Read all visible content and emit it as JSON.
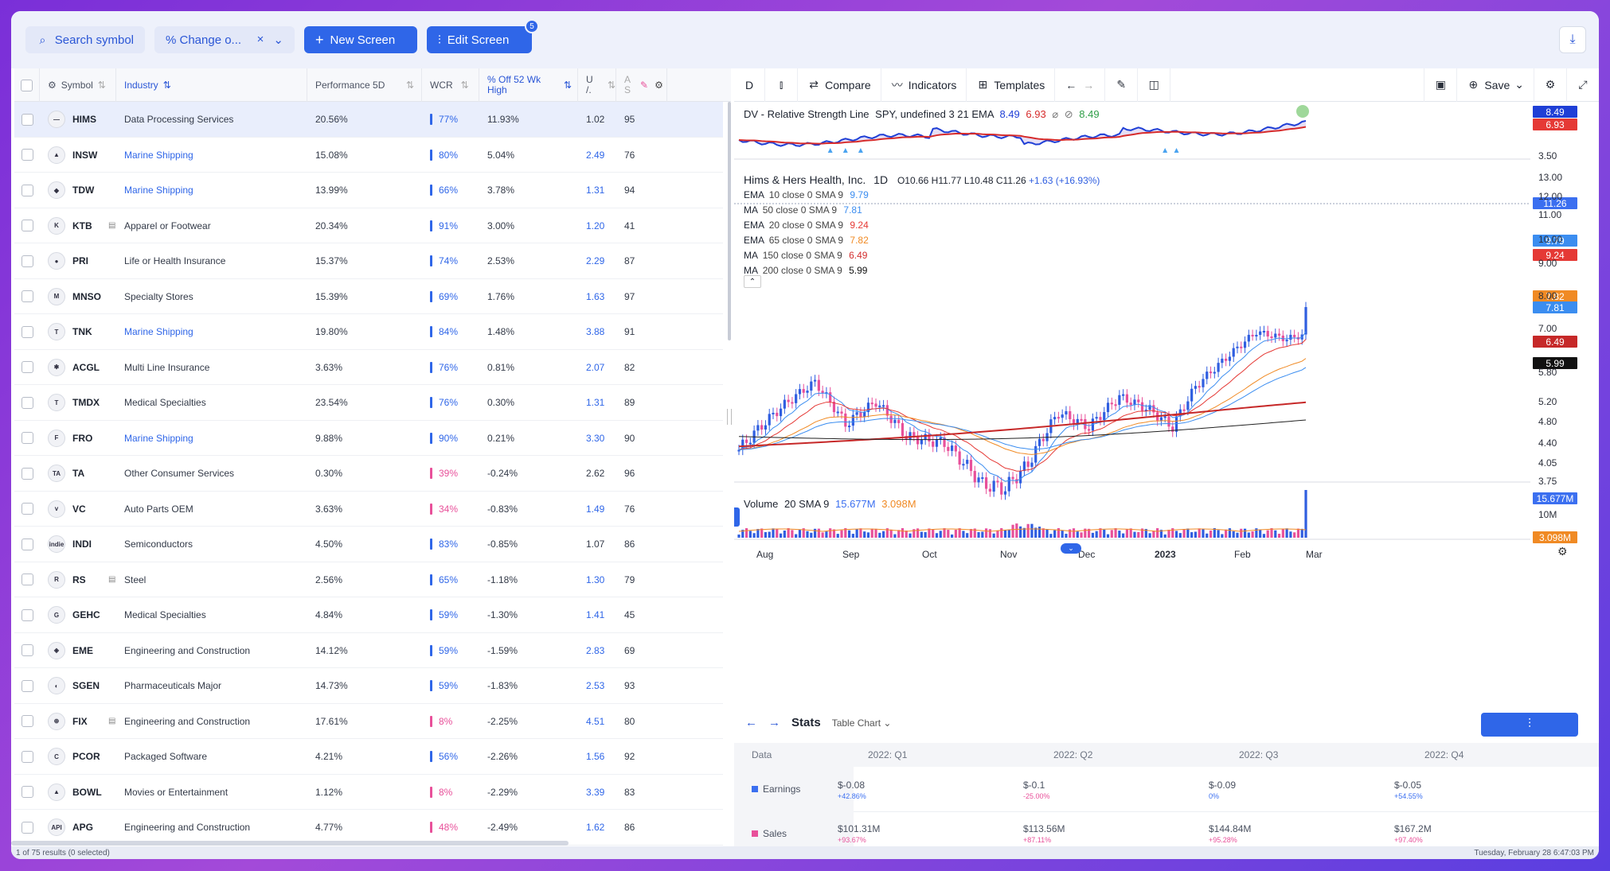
{
  "toolbar": {
    "search_label": "Search symbol",
    "filter_label": "% Change o...",
    "new_screen": "New Screen",
    "edit_screen": "Edit Screen",
    "edit_badge": "5"
  },
  "table": {
    "headers": {
      "symbol": "Symbol",
      "industry": "Industry",
      "perf": "Performance 5D",
      "wcr": "WCR",
      "off52": "% Off 52 Wk High",
      "u": "U /.",
      "a": "A S"
    },
    "rows": [
      {
        "symbol": "HIMS",
        "industry": "Data Processing Services",
        "perf": "20.56%",
        "wcr": "77%",
        "off": "11.93%",
        "u": "1.02",
        "a": "95",
        "link": false,
        "wpos": true,
        "ublue": false,
        "logo": "—",
        "extra": false
      },
      {
        "symbol": "INSW",
        "industry": "Marine Shipping",
        "perf": "15.08%",
        "wcr": "80%",
        "off": "5.04%",
        "u": "2.49",
        "a": "76",
        "link": true,
        "wpos": true,
        "ublue": true,
        "logo": "▲",
        "extra": false
      },
      {
        "symbol": "TDW",
        "industry": "Marine Shipping",
        "perf": "13.99%",
        "wcr": "66%",
        "off": "3.78%",
        "u": "1.31",
        "a": "94",
        "link": true,
        "wpos": true,
        "ublue": true,
        "logo": "◆",
        "extra": false
      },
      {
        "symbol": "KTB",
        "industry": "Apparel or Footwear",
        "perf": "20.34%",
        "wcr": "91%",
        "off": "3.00%",
        "u": "1.20",
        "a": "41",
        "link": false,
        "wpos": true,
        "ublue": true,
        "logo": "K",
        "extra": true
      },
      {
        "symbol": "PRI",
        "industry": "Life or Health Insurance",
        "perf": "15.37%",
        "wcr": "74%",
        "off": "2.53%",
        "u": "2.29",
        "a": "87",
        "link": false,
        "wpos": true,
        "ublue": true,
        "logo": "●",
        "extra": false
      },
      {
        "symbol": "MNSO",
        "industry": "Specialty Stores",
        "perf": "15.39%",
        "wcr": "69%",
        "off": "1.76%",
        "u": "1.63",
        "a": "97",
        "link": false,
        "wpos": true,
        "ublue": true,
        "logo": "M",
        "extra": false
      },
      {
        "symbol": "TNK",
        "industry": "Marine Shipping",
        "perf": "19.80%",
        "wcr": "84%",
        "off": "1.48%",
        "u": "3.88",
        "a": "91",
        "link": true,
        "wpos": true,
        "ublue": true,
        "logo": "T",
        "extra": false
      },
      {
        "symbol": "ACGL",
        "industry": "Multi Line Insurance",
        "perf": "3.63%",
        "wcr": "76%",
        "off": "0.81%",
        "u": "2.07",
        "a": "82",
        "link": false,
        "wpos": true,
        "ublue": true,
        "logo": "✱",
        "extra": false
      },
      {
        "symbol": "TMDX",
        "industry": "Medical Specialties",
        "perf": "23.54%",
        "wcr": "76%",
        "off": "0.30%",
        "u": "1.31",
        "a": "89",
        "link": false,
        "wpos": true,
        "ublue": true,
        "logo": "T",
        "extra": false
      },
      {
        "symbol": "FRO",
        "industry": "Marine Shipping",
        "perf": "9.88%",
        "wcr": "90%",
        "off": "0.21%",
        "u": "3.30",
        "a": "90",
        "link": true,
        "wpos": true,
        "ublue": true,
        "logo": "F",
        "extra": false
      },
      {
        "symbol": "TA",
        "industry": "Other Consumer Services",
        "perf": "0.30%",
        "wcr": "39%",
        "off": "-0.24%",
        "u": "2.62",
        "a": "96",
        "link": false,
        "wpos": false,
        "ublue": false,
        "logo": "TA",
        "extra": false
      },
      {
        "symbol": "VC",
        "industry": "Auto Parts OEM",
        "perf": "3.63%",
        "wcr": "34%",
        "off": "-0.83%",
        "u": "1.49",
        "a": "76",
        "link": false,
        "wpos": false,
        "ublue": true,
        "logo": "v",
        "extra": false
      },
      {
        "symbol": "INDI",
        "industry": "Semiconductors",
        "perf": "4.50%",
        "wcr": "83%",
        "off": "-0.85%",
        "u": "1.07",
        "a": "86",
        "link": false,
        "wpos": true,
        "ublue": false,
        "logo": "indie",
        "extra": false
      },
      {
        "symbol": "RS",
        "industry": "Steel",
        "perf": "2.56%",
        "wcr": "65%",
        "off": "-1.18%",
        "u": "1.30",
        "a": "79",
        "link": false,
        "wpos": true,
        "ublue": true,
        "logo": "R",
        "extra": true
      },
      {
        "symbol": "GEHC",
        "industry": "Medical Specialties",
        "perf": "4.84%",
        "wcr": "59%",
        "off": "-1.30%",
        "u": "1.41",
        "a": "45",
        "link": false,
        "wpos": true,
        "ublue": true,
        "logo": "G",
        "extra": false
      },
      {
        "symbol": "EME",
        "industry": "Engineering and Construction",
        "perf": "14.12%",
        "wcr": "59%",
        "off": "-1.59%",
        "u": "2.83",
        "a": "69",
        "link": false,
        "wpos": true,
        "ublue": true,
        "logo": "◈",
        "extra": false
      },
      {
        "symbol": "SGEN",
        "industry": "Pharmaceuticals Major",
        "perf": "14.73%",
        "wcr": "59%",
        "off": "-1.83%",
        "u": "2.53",
        "a": "93",
        "link": false,
        "wpos": true,
        "ublue": true,
        "logo": "◐",
        "extra": false
      },
      {
        "symbol": "FIX",
        "industry": "Engineering and Construction",
        "perf": "17.61%",
        "wcr": "8%",
        "off": "-2.25%",
        "u": "4.51",
        "a": "80",
        "link": false,
        "wpos": false,
        "ublue": true,
        "logo": "⊕",
        "extra": true
      },
      {
        "symbol": "PCOR",
        "industry": "Packaged Software",
        "perf": "4.21%",
        "wcr": "56%",
        "off": "-2.26%",
        "u": "1.56",
        "a": "92",
        "link": false,
        "wpos": true,
        "ublue": true,
        "logo": "C",
        "extra": false
      },
      {
        "symbol": "BOWL",
        "industry": "Movies or Entertainment",
        "perf": "1.12%",
        "wcr": "8%",
        "off": "-2.29%",
        "u": "3.39",
        "a": "83",
        "link": false,
        "wpos": false,
        "ublue": true,
        "logo": "▲",
        "extra": false
      },
      {
        "symbol": "APG",
        "industry": "Engineering and Construction",
        "perf": "4.77%",
        "wcr": "48%",
        "off": "-2.49%",
        "u": "1.62",
        "a": "86",
        "link": false,
        "wpos": false,
        "ublue": true,
        "logo": "API",
        "extra": false
      }
    ]
  },
  "footer": {
    "results": "1 of 75 results (0 selected)",
    "datetime": "Tuesday, February 28 6:47:03 PM"
  },
  "chart_toolbar": {
    "interval": "D",
    "compare": "Compare",
    "indicators": "Indicators",
    "templates": "Templates",
    "save": "Save"
  },
  "rsl": {
    "title": "DV - Relative Strength Line",
    "params": "SPY, undefined 3 21 EMA",
    "v1": "8.49",
    "v2": "6.93",
    "v3": "8.49",
    "lbl1": "8.49",
    "lbl2": "6.93",
    "axis": "3.50"
  },
  "main": {
    "title": "Hims & Hers Health, Inc.",
    "interval": "1D",
    "o": "O10.66",
    "h": "H11.77",
    "l": "L10.48",
    "c": "C11.26",
    "chg": "+1.63 (+16.93%)",
    "mas": [
      {
        "name": "EMA",
        "params": "10 close 0 SMA 9",
        "value": "9.79",
        "color": "#3b8df0"
      },
      {
        "name": "MA",
        "params": "50 close 0 SMA 9",
        "value": "7.81",
        "color": "#3b8df0"
      },
      {
        "name": "EMA",
        "params": "20 close 0 SMA 9",
        "value": "9.24",
        "color": "#e53935"
      },
      {
        "name": "EMA",
        "params": "65 close 0 SMA 9",
        "value": "7.82",
        "color": "#f08a24"
      },
      {
        "name": "MA",
        "params": "150 close 0 SMA 9",
        "value": "6.49",
        "color": "#d32f2f"
      },
      {
        "name": "MA",
        "params": "200 close 0 SMA 9",
        "value": "5.99",
        "color": "#111111"
      }
    ],
    "price_labels": {
      "last": "11.26",
      "ema10": "9.79",
      "ema20": "9.24",
      "ema65": "7.82",
      "ma50": "7.81",
      "ma150": "6.49",
      "ma200": "5.99"
    },
    "axis": [
      "13.00",
      "12.00",
      "11.00",
      "10.00",
      "9.00",
      "8.00",
      "7.00",
      "5.80",
      "5.20",
      "4.80",
      "4.40",
      "4.05",
      "3.75"
    ]
  },
  "volume": {
    "title": "Volume",
    "params": "20 SMA 9",
    "v1": "15.677M",
    "v2": "3.098M",
    "axis": "10M",
    "lbl1": "15.677M",
    "lbl2": "3.098M"
  },
  "xaxis": [
    "Aug",
    "Sep",
    "Oct",
    "Nov",
    "Dec",
    "2023",
    "Feb",
    "Mar"
  ],
  "stats": {
    "title": "Stats",
    "mode": "Table Chart",
    "data_label": "Data",
    "quarters": [
      "2022: Q1",
      "2022: Q2",
      "2022: Q3",
      "2022: Q4"
    ],
    "earnings_label": "Earnings",
    "earnings": [
      "$-0.08",
      "$-0.1",
      "$-0.09",
      "$-0.05"
    ],
    "earnings_chg": [
      "+42.86%",
      "-25.00%",
      "0%",
      "+54.55%"
    ],
    "sales_label": "Sales",
    "sales": [
      "$101.31M",
      "$113.56M",
      "$144.84M",
      "$167.2M"
    ],
    "sales_chg": [
      "+93.67%",
      "+87.11%",
      "+95.28%",
      "+97.40%"
    ]
  },
  "colors": {
    "accent": "#2f66e8",
    "up": "#2f5ee0",
    "down": "#e8509a",
    "green": "#2e9e47"
  }
}
